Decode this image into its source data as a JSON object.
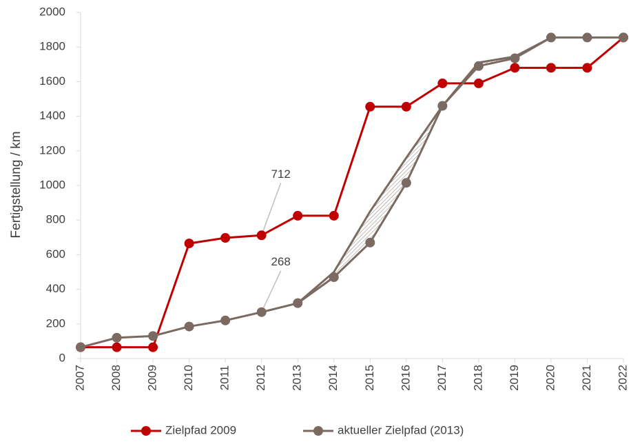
{
  "chart_data": {
    "type": "line",
    "y_label": "Fertigstellung / km",
    "x": [
      2007,
      2008,
      2009,
      2010,
      2011,
      2012,
      2013,
      2014,
      2015,
      2016,
      2017,
      2018,
      2019,
      2020,
      2021,
      2022
    ],
    "xlim": [
      2007,
      2022
    ],
    "xticks": [
      2007,
      2008,
      2009,
      2010,
      2011,
      2012,
      2013,
      2014,
      2015,
      2016,
      2017,
      2018,
      2019,
      2020,
      2021,
      2022
    ],
    "ylim": [
      0,
      2000
    ],
    "yticks": [
      0,
      200,
      400,
      600,
      800,
      1000,
      1200,
      1400,
      1600,
      1800,
      2000
    ],
    "grid": false,
    "legend": "bottom",
    "series": [
      {
        "name": "Zielpfad 2009",
        "color": "#c00000",
        "values": [
          65,
          65,
          65,
          665,
          697,
          712,
          825,
          825,
          1455,
          1455,
          1590,
          1590,
          1680,
          1680,
          1680,
          1855
        ]
      },
      {
        "name": "aktueller Zielpfad (2013)",
        "color": "#7b6a61",
        "values": [
          65,
          120,
          130,
          185,
          220,
          268,
          320,
          470,
          670,
          1015,
          1460,
          1690,
          1735,
          1855,
          1855,
          1855
        ]
      }
    ],
    "upper_path": {
      "color": "#7b6a61",
      "values": [
        null,
        null,
        null,
        null,
        null,
        null,
        320,
        500,
        850,
        1160,
        1460,
        1710,
        1745,
        1855,
        null,
        null
      ]
    },
    "annotations": [
      {
        "text": "712",
        "x": 2012,
        "y": 712
      },
      {
        "text": "268",
        "x": 2012,
        "y": 268
      }
    ]
  }
}
